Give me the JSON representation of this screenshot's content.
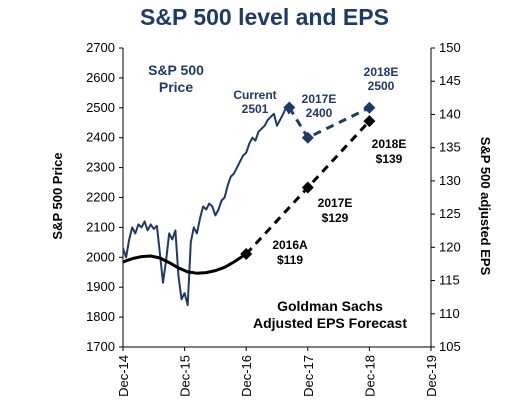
{
  "chart_data": {
    "type": "line",
    "title": "S&P 500 level and EPS",
    "ylabel_left": "S&P 500 Price",
    "ylabel_right": "S&P 500 adjusted EPS",
    "ylim_left": [
      1700,
      2700
    ],
    "ylim_right": [
      105,
      150
    ],
    "yticks_left": [
      1700,
      1800,
      1900,
      2000,
      2100,
      2200,
      2300,
      2400,
      2500,
      2600,
      2700
    ],
    "yticks_right": [
      105,
      110,
      115,
      120,
      125,
      130,
      135,
      140,
      145,
      150
    ],
    "xticks": [
      "Dec-14",
      "Dec-15",
      "Dec-16",
      "Dec-17",
      "Dec-18",
      "Dec-19"
    ],
    "price_series": {
      "name": "S&P 500 Price",
      "color": "#1f3a66",
      "x": [
        0.0,
        0.05,
        0.1,
        0.15,
        0.2,
        0.25,
        0.3,
        0.35,
        0.4,
        0.45,
        0.5,
        0.55,
        0.6,
        0.65,
        0.7,
        0.75,
        0.8,
        0.85,
        0.9,
        0.95,
        1.0,
        1.05,
        1.1,
        1.15,
        1.2,
        1.25,
        1.3,
        1.35,
        1.4,
        1.45,
        1.5,
        1.55,
        1.6,
        1.65,
        1.7,
        1.75,
        1.8,
        1.85,
        1.9,
        1.95,
        2.0,
        2.05,
        2.1,
        2.15,
        2.2,
        2.25,
        2.3,
        2.35,
        2.4,
        2.45,
        2.5,
        2.55,
        2.6,
        2.65,
        2.7
      ],
      "y": [
        2030,
        2000,
        2060,
        2100,
        2080,
        2110,
        2100,
        2120,
        2090,
        2110,
        2095,
        2105,
        2010,
        1915,
        1990,
        2080,
        2060,
        2090,
        1940,
        1860,
        1880,
        1840,
        2050,
        2100,
        2080,
        2130,
        2170,
        2160,
        2180,
        2170,
        2140,
        2160,
        2190,
        2200,
        2240,
        2270,
        2280,
        2300,
        2320,
        2340,
        2350,
        2380,
        2400,
        2390,
        2420,
        2430,
        2440,
        2460,
        2470,
        2480,
        2440,
        2460,
        2480,
        2501,
        2480
      ]
    },
    "forecast_series": {
      "name": "S&P 500 Price forecast",
      "color": "#1f3a66",
      "points": [
        {
          "x": 2.7,
          "y": 2501
        },
        {
          "x": 3.0,
          "y": 2400
        },
        {
          "x": 4.0,
          "y": 2500
        }
      ]
    },
    "eps_series": {
      "name": "EPS",
      "color": "#000000",
      "x": [
        0.0,
        0.15,
        0.3,
        0.45,
        0.6,
        0.75,
        0.9,
        1.05,
        1.2,
        1.35,
        1.5,
        1.65,
        1.8,
        1.9,
        2.0
      ],
      "y": [
        117.8,
        118.3,
        118.6,
        118.7,
        118.4,
        117.7,
        116.9,
        116.3,
        116.1,
        116.2,
        116.5,
        117.0,
        117.8,
        118.4,
        119.0
      ]
    },
    "eps_forecast": {
      "name": "Goldman Sachs Adjusted EPS Forecast",
      "color": "#000000",
      "points": [
        {
          "x": 2.0,
          "y": 119
        },
        {
          "x": 3.0,
          "y": 129
        },
        {
          "x": 4.0,
          "y": 139
        }
      ]
    },
    "annotations": {
      "price_box_line1": "S&P 500",
      "price_box_line2": "Price",
      "current_line1": "Current",
      "current_line2": "2501",
      "e2017_price_line1": "2017E",
      "e2017_price_line2": "2400",
      "e2018_price_line1": "2018E",
      "e2018_price_line2": "2500",
      "e2018_eps_line1": "2018E",
      "e2018_eps_line2": "$139",
      "e2017_eps_line1": "2017E",
      "e2017_eps_line2": "$129",
      "a2016_eps_line1": "2016A",
      "a2016_eps_line2": "$119",
      "gs_line1": "Goldman Sachs",
      "gs_line2": "Adjusted EPS Forecast"
    }
  }
}
